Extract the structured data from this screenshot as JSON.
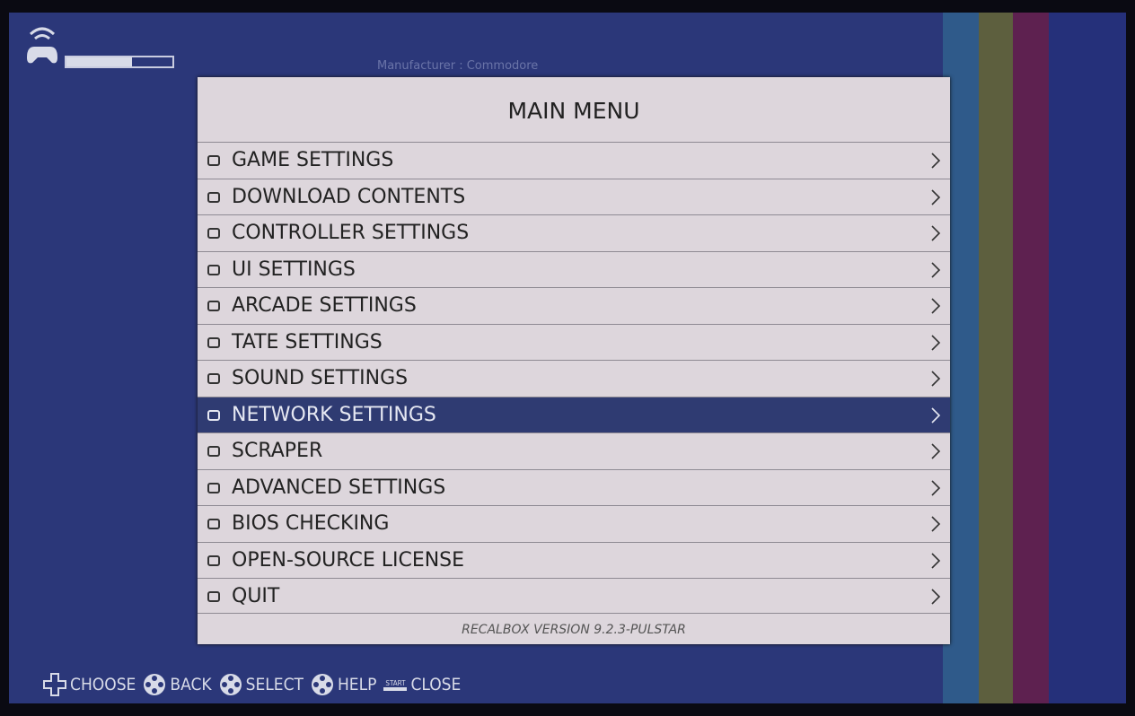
{
  "header": {
    "manufacturer": "Manufacturer : Commodore",
    "battery_level": 62
  },
  "menu": {
    "title": "MAIN MENU",
    "items": [
      "GAME SETTINGS",
      "DOWNLOAD CONTENTS",
      "CONTROLLER SETTINGS",
      "UI SETTINGS",
      "ARCADE SETTINGS",
      "TATE SETTINGS",
      "SOUND SETTINGS",
      "NETWORK SETTINGS",
      "SCRAPER",
      "ADVANCED SETTINGS",
      "BIOS CHECKING",
      "OPEN-SOURCE LICENSE",
      "QUIT"
    ],
    "selected": 7,
    "version": "RECALBOX VERSION  9.2.3-PULSTAR"
  },
  "help_bar": {
    "items": [
      {
        "label": "CHOOSE"
      },
      {
        "label": "BACK"
      },
      {
        "label": "SELECT"
      },
      {
        "label": "HELP"
      },
      {
        "label": "CLOSE",
        "button_text": "START"
      }
    ]
  }
}
